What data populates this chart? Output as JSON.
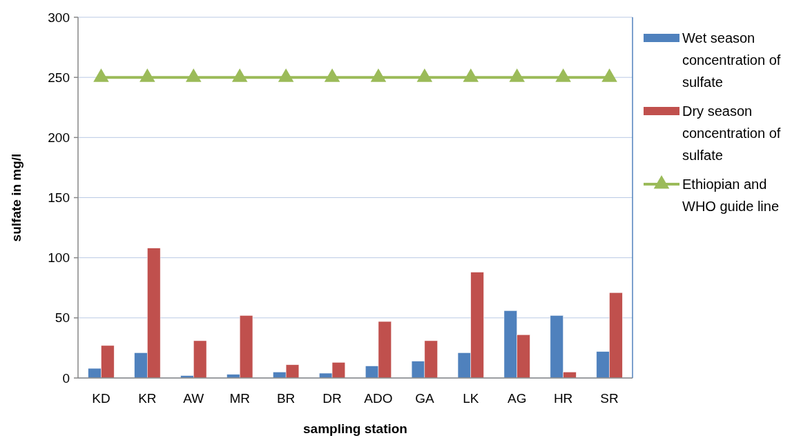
{
  "chart_data": {
    "type": "bar",
    "xlabel": "sampling station",
    "ylabel": "sulfate in mg/l",
    "categories": [
      "KD",
      "KR",
      "AW",
      "MR",
      "BR",
      "DR",
      "ADO",
      "GA",
      "LK",
      "AG",
      "HR",
      "SR"
    ],
    "series": [
      {
        "name": "Wet season concentration of sulfate",
        "color": "#4f81bd",
        "values": [
          8,
          21,
          2,
          3,
          5,
          4,
          10,
          14,
          21,
          56,
          52,
          22
        ]
      },
      {
        "name": "Dry season concentration of sulfate",
        "color": "#c0504d",
        "values": [
          27,
          108,
          31,
          52,
          11,
          13,
          47,
          31,
          88,
          36,
          5,
          71
        ]
      },
      {
        "name": "Ethiopian and WHO guide line",
        "type": "line",
        "color": "#9bbb59",
        "marker": "triangle",
        "values": [
          250,
          250,
          250,
          250,
          250,
          250,
          250,
          250,
          250,
          250,
          250,
          250
        ]
      }
    ],
    "ylim": [
      0,
      300
    ],
    "yticks": [
      0,
      50,
      100,
      150,
      200,
      250,
      300
    ],
    "grid": "y",
    "legend": "right"
  }
}
